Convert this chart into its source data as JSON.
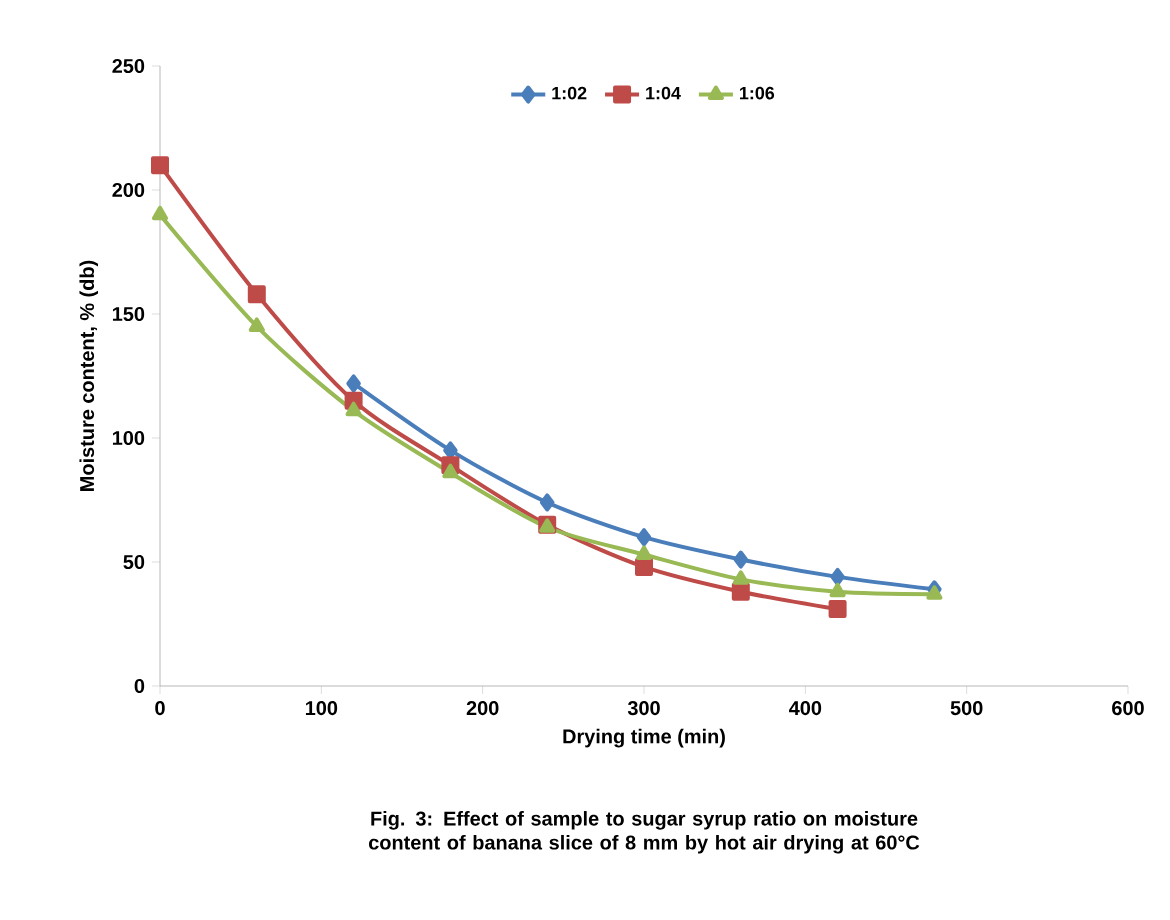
{
  "chart_data": {
    "type": "line",
    "xlabel": "Drying time  (min)",
    "ylabel": "Moisture content, % (db)",
    "x": [
      0,
      60,
      120,
      180,
      240,
      300,
      360,
      420,
      480
    ],
    "series": [
      {
        "name": "1:02",
        "color": "#4a7ebb",
        "marker": "diamond",
        "values": [
          null,
          null,
          122,
          95,
          74,
          60,
          51,
          44,
          39
        ]
      },
      {
        "name": "1:04",
        "color": "#be4b48",
        "marker": "square",
        "values": [
          210,
          158,
          115,
          89,
          65,
          48,
          38,
          31,
          null
        ]
      },
      {
        "name": "1:06",
        "color": "#98b954",
        "marker": "triangle",
        "values": [
          190,
          145,
          111,
          86,
          64,
          53,
          43,
          38,
          37
        ]
      }
    ],
    "xlim": [
      0,
      600
    ],
    "xticks": [
      0,
      100,
      200,
      300,
      400,
      500,
      600
    ],
    "ylim": [
      0,
      250
    ],
    "yticks": [
      0,
      50,
      100,
      150,
      200,
      250
    ],
    "grid": false,
    "legend": "top",
    "annotations": [
      "Fig. 3: Effect of sample to sugar syrup ratio on moisture content of banana slice of 8 mm by hot air drying at 60°C"
    ]
  }
}
